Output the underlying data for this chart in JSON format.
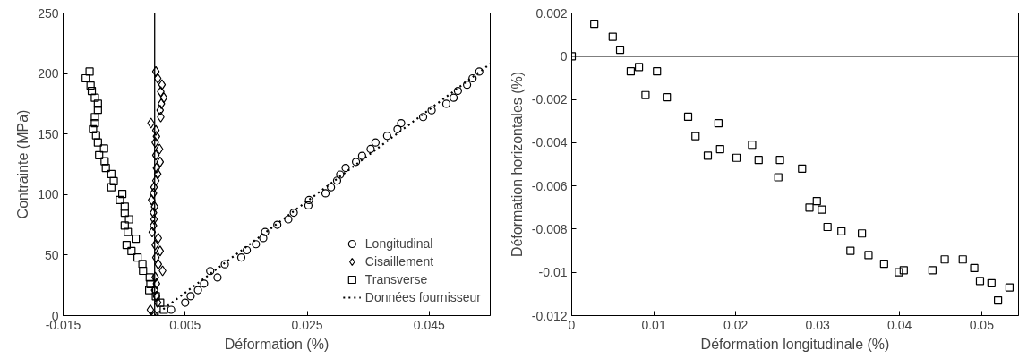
{
  "chart_data": [
    {
      "type": "scatter",
      "xlabel": "Déformation (%)",
      "ylabel": "Contrainte (MPa)",
      "xlim": [
        -0.015,
        0.055
      ],
      "ylim": [
        0,
        250
      ],
      "xticks": [
        -0.015,
        0.005,
        0.025,
        0.045
      ],
      "yticks": [
        0,
        50,
        100,
        150,
        200,
        250
      ],
      "grid": false,
      "legend": "bottom right",
      "ref_lines": [
        {
          "axis": "x",
          "value": 0
        }
      ],
      "series": [
        {
          "name": "Longitudinal",
          "color": "#000000",
          "marker": "circle",
          "x": [
            0,
            0.0027,
            0.005,
            0.0059,
            0.0071,
            0.0081,
            0.0091,
            0.0103,
            0.0115,
            0.0142,
            0.0151,
            0.0166,
            0.0178,
            0.0181,
            0.0201,
            0.0219,
            0.0228,
            0.0252,
            0.0253,
            0.028,
            0.0289,
            0.0299,
            0.0304,
            0.0313,
            0.033,
            0.034,
            0.0354,
            0.0362,
            0.0381,
            0.0398,
            0.0404,
            0.044,
            0.0454,
            0.0478,
            0.049,
            0.0497,
            0.0512,
            0.0521,
            0.0532
          ],
          "values": [
            0,
            4.8,
            10.7,
            16,
            21,
            26.4,
            36.8,
            31.5,
            42.4,
            48,
            54,
            59,
            64,
            69,
            75,
            79.5,
            85,
            91,
            95.5,
            101,
            106,
            111.5,
            116.5,
            122,
            127,
            132,
            137.6,
            143,
            148.5,
            154,
            159,
            164,
            169.6,
            175,
            180,
            185.6,
            190.7,
            196,
            201.6
          ]
        },
        {
          "name": "Cisaillement",
          "color": "#000000",
          "marker": "diamond",
          "x": [
            0.0002,
            0.0005,
            0.0012,
            0.001,
            0.0015,
            0.0011,
            0.0009,
            0.001,
            -0.0006,
            0.0002,
            0.0003,
            0.0001,
            0.0008,
            0.0002,
            0.0009,
            0.0003,
            0.0005,
            0.0002,
            -0.0001,
            -0.0002,
            -0.0005,
            0,
            -0.0002,
            -0.0001,
            -0.0002,
            -0.0004,
            0.0006,
            0.0001,
            0.0009,
            0.0002,
            0.0006,
            0.0013,
            0.0001,
            0.0003,
            0,
            0.0003,
            0.0005,
            -0.0007,
            0
          ],
          "values": [
            201.6,
            196,
            190.7,
            185,
            180,
            175,
            169.6,
            164,
            159,
            153,
            148,
            143,
            137.6,
            132.5,
            127,
            122,
            117,
            111.5,
            106,
            101,
            95.5,
            90,
            85,
            79.5,
            74.4,
            69,
            64,
            58.4,
            53.3,
            48,
            42.4,
            37,
            31.7,
            26.4,
            21,
            16,
            10.7,
            4.8,
            0
          ]
        },
        {
          "name": "Transverse",
          "color": "#000000",
          "marker": "square",
          "x": [
            -0.01066,
            -0.0113,
            -0.0105,
            -0.0103,
            -0.0098,
            -0.0093,
            -0.0093,
            -0.0098,
            -0.0098,
            -0.0101,
            -0.0096,
            -0.0093,
            -0.0083,
            -0.0091,
            -0.0082,
            -0.008,
            -0.0071,
            -0.0067,
            -0.0071,
            -0.0053,
            -0.0057,
            -0.0049,
            -0.0049,
            -0.0042,
            -0.0049,
            -0.0044,
            -0.0031,
            -0.0046,
            -0.0038,
            -0.0028,
            -0.002,
            -0.0019,
            -0.0008,
            -0.0007,
            -0.0009,
            0.0002,
            0.0009,
            0.0015,
            0
          ],
          "values": [
            201.6,
            196,
            190,
            185.6,
            180,
            175,
            170,
            164,
            159,
            154,
            149,
            143,
            138,
            132.5,
            127.5,
            122,
            117,
            111,
            106,
            100.5,
            95.5,
            90,
            85,
            79.5,
            74.4,
            69,
            63.5,
            58.4,
            53.3,
            48,
            42.7,
            37,
            31.5,
            26,
            21,
            16,
            10.7,
            4.8,
            0
          ]
        },
        {
          "name": "Données fournisseur",
          "color": "#000000",
          "type": "line",
          "line_style": "dotted",
          "x": [
            0,
            0.055
          ],
          "values": [
            0,
            208
          ]
        }
      ]
    },
    {
      "type": "scatter",
      "xlabel": "Déformation longitudinale (%)",
      "ylabel": "Déformation horizontales (%)",
      "xlim": [
        0,
        0.0545
      ],
      "ylim": [
        -0.012,
        0.002
      ],
      "xticks": [
        0,
        0.01,
        0.02,
        0.03,
        0.04,
        0.05
      ],
      "yticks": [
        0.002,
        0,
        -0.002,
        -0.004,
        -0.006,
        -0.008,
        -0.01,
        -0.012
      ],
      "grid": false,
      "marker": "square",
      "ref_lines": [
        {
          "axis": "y",
          "value": 0
        }
      ],
      "series": [
        {
          "color": "#000000",
          "x": [
            0,
            0.00275,
            0.005,
            0.0059,
            0.0072,
            0.0082,
            0.009,
            0.0104,
            0.0116,
            0.0142,
            0.0151,
            0.0166,
            0.0179,
            0.0181,
            0.0201,
            0.022,
            0.0228,
            0.0252,
            0.0254,
            0.0281,
            0.029,
            0.0299,
            0.0305,
            0.0312,
            0.0329,
            0.034,
            0.0354,
            0.0362,
            0.0381,
            0.0399,
            0.0405,
            0.044,
            0.0455,
            0.0477,
            0.0491,
            0.0498,
            0.0512,
            0.052,
            0.0534
          ],
          "values": [
            0,
            0.0015,
            0.0009,
            0.0003,
            -0.0007,
            -0.0005,
            -0.0018,
            -0.0007,
            -0.0019,
            -0.0028,
            -0.0037,
            -0.0046,
            -0.0031,
            -0.0043,
            -0.0047,
            -0.0041,
            -0.0048,
            -0.0056,
            -0.0048,
            -0.0052,
            -0.007,
            -0.0067,
            -0.0071,
            -0.0079,
            -0.0081,
            -0.009,
            -0.0082,
            -0.0092,
            -0.0096,
            -0.01,
            -0.0099,
            -0.0099,
            -0.0094,
            -0.0094,
            -0.0098,
            -0.0104,
            -0.0105,
            -0.0113,
            -0.0107
          ]
        }
      ]
    }
  ]
}
